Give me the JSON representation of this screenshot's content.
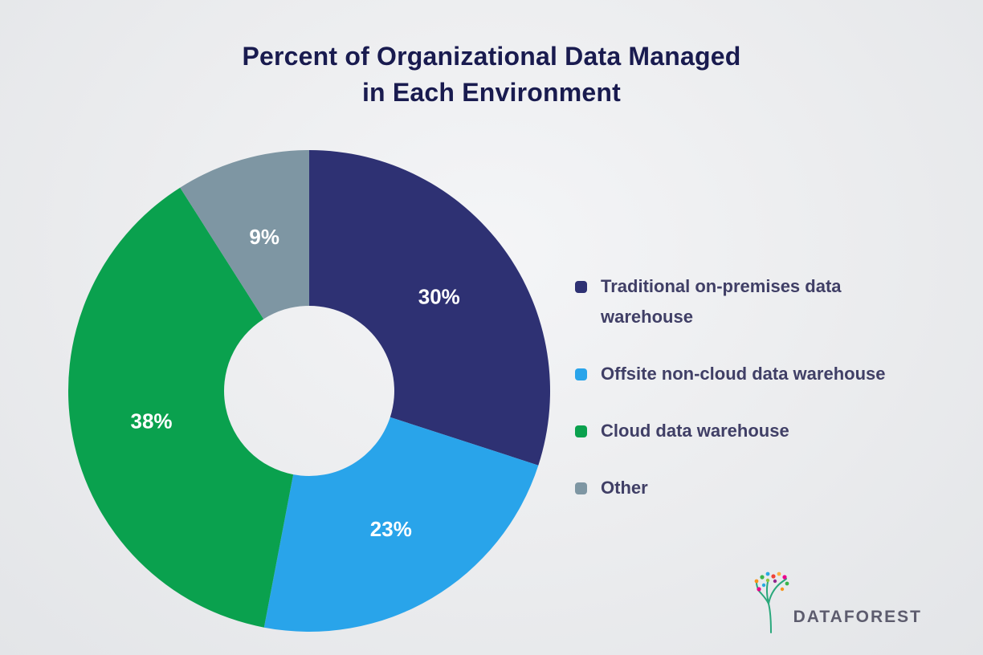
{
  "title": {
    "line1": "Percent of Organizational Data Managed",
    "line2": "in Each Environment"
  },
  "chart_data": {
    "type": "pie",
    "style": "donut",
    "title": "Percent of Organizational Data Managed in Each Environment",
    "categories": [
      "Traditional on-premises data warehouse",
      "Offsite non-cloud data warehouse",
      "Cloud data warehouse",
      "Other"
    ],
    "values": [
      30,
      23,
      38,
      9
    ],
    "labels": [
      "30%",
      "23%",
      "38%",
      "9%"
    ],
    "colors": [
      "#2E3173",
      "#29A4EA",
      "#0AA14E",
      "#7E96A3"
    ],
    "start_angle": "12 o'clock",
    "direction": "clockwise",
    "legend_position": "right",
    "slice_label_color": "#FFFFFF",
    "hole_ratio": 0.35
  },
  "legend": {
    "items": [
      {
        "label": "Traditional on-premises data warehouse",
        "color": "#2E3173"
      },
      {
        "label": "Offsite non-cloud data warehouse",
        "color": "#29A4EA"
      },
      {
        "label": "Cloud data warehouse",
        "color": "#0AA14E"
      },
      {
        "label": "Other",
        "color": "#7E96A3"
      }
    ]
  },
  "logo": {
    "text": "DATAFOREST"
  }
}
